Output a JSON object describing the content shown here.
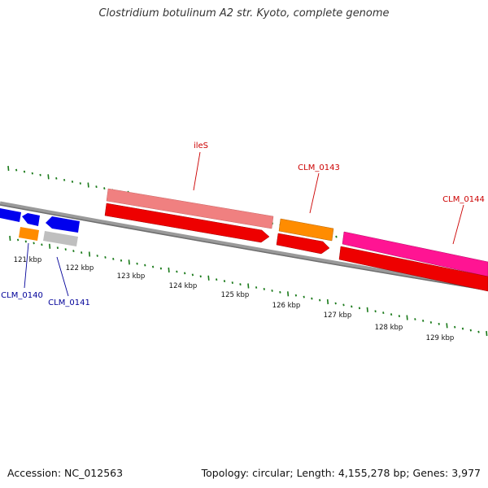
{
  "title": "Clostridium botulinum A2 str. Kyoto, complete genome",
  "footer": {
    "accession": "Accession: NC_012563",
    "summary": "Topology: circular; Length: 4,155,278 bp; Genes: 3,977"
  },
  "ticks": [
    "121 kbp",
    "122 kbp",
    "123 kbp",
    "124 kbp",
    "125 kbp",
    "126 kbp",
    "127 kbp",
    "128 kbp",
    "129 kbp"
  ],
  "genes": [
    {
      "label": "ileS",
      "color": "#cc0000"
    },
    {
      "label": "CLM_0143",
      "color": "#cc0000"
    },
    {
      "label": "CLM_0144",
      "color": "#cc0000"
    },
    {
      "label": "CLM_0140",
      "color": "#000099"
    },
    {
      "label": "CLM_0141",
      "color": "#000099"
    }
  ],
  "colors": {
    "backbone": "#7f7f7f",
    "tick_marks": "#1a7a1a",
    "blue_feature": "#0000ee",
    "orange_feature": "#ff8c00",
    "gray_feature": "#bfbfbf",
    "pink_feature": "#f08080",
    "red_feature": "#ee0000",
    "magenta_feature": "#ff1493"
  }
}
